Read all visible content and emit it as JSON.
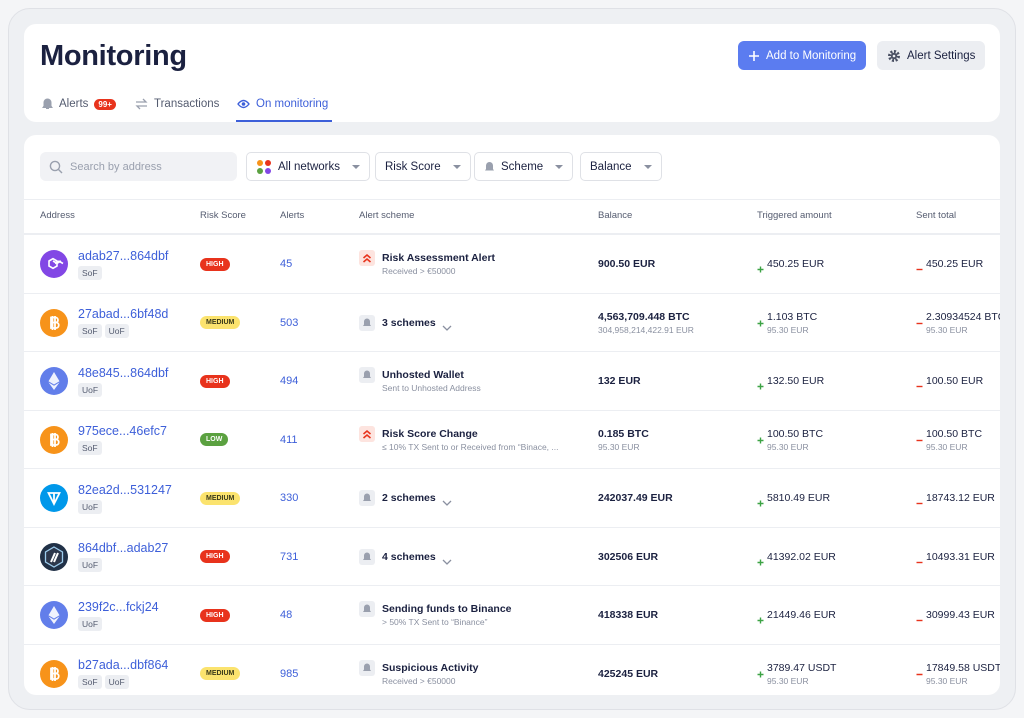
{
  "header": {
    "title": "Monitoring",
    "add_button": "Add to Monitoring",
    "settings_button": "Alert Settings"
  },
  "tabs": [
    {
      "label": "Alerts",
      "badge": "99+"
    },
    {
      "label": "Transactions"
    },
    {
      "label": "On monitoring",
      "active": true
    }
  ],
  "filters": {
    "search_placeholder": "Search by address",
    "networks": "All networks",
    "risk": "Risk Score",
    "scheme": "Scheme",
    "balance": "Balance"
  },
  "risk_styles": {
    "HIGH": {
      "bg": "#e8331c",
      "fg": "#ffffff"
    },
    "MEDIUM": {
      "bg": "#fbe36e",
      "fg": "#3a3a1a"
    },
    "LOW": {
      "bg": "#5ba140",
      "fg": "#ffffff"
    }
  },
  "table": {
    "columns": [
      "Address",
      "Risk Score",
      "Alerts",
      "Alert scheme",
      "Balance",
      "Triggered amount",
      "Sent total"
    ],
    "rows": [
      {
        "address": "adab27...864dbf",
        "tags": [
          "SoF"
        ],
        "risk": "HIGH",
        "alerts": "45",
        "scheme": "Risk Assessment Alert",
        "scheme_sub": "Received > €50000",
        "balance": "900.50 EUR",
        "triggered": "450.25 EUR",
        "sent": "450.25 EUR"
      },
      {
        "address": "27abad...6bf48d",
        "tags": [
          "SoF",
          "UoF"
        ],
        "risk": "MEDIUM",
        "alerts": "503",
        "scheme": "3 schemes",
        "balance": "4,563,709.448 BTC",
        "balance_sub": "304,958,214,422.91 EUR",
        "triggered": "1.103 BTC",
        "triggered_sub": "95.30 EUR",
        "sent": "2.30934524 BTC",
        "sent_sub": "95.30 EUR"
      },
      {
        "address": "48e845...864dbf",
        "tags": [
          "UoF"
        ],
        "risk": "HIGH",
        "alerts": "494",
        "scheme": "Unhosted Wallet",
        "scheme_sub": "Sent to Unhosted Address",
        "balance": "132 EUR",
        "triggered": "132.50 EUR",
        "sent": "100.50 EUR"
      },
      {
        "address": "975ece...46efc7",
        "tags": [
          "SoF"
        ],
        "risk": "LOW",
        "alerts": "411",
        "scheme": "Risk Score Change",
        "scheme_sub": "≤ 10% TX Sent to or Received from “Binace, ...",
        "balance": "0.185 BTC",
        "balance_sub": "95.30 EUR",
        "triggered": "100.50 BTC",
        "triggered_sub": "95.30 EUR",
        "sent": "100.50 BTC",
        "sent_sub": "95.30 EUR"
      },
      {
        "address": "82ea2d...531247",
        "tags": [
          "UoF"
        ],
        "risk": "MEDIUM",
        "alerts": "330",
        "scheme": "2 schemes",
        "balance": "242037.49 EUR",
        "triggered": "5810.49 EUR",
        "sent": "18743.12 EUR"
      },
      {
        "address": "864dbf...adab27",
        "tags": [
          "UoF"
        ],
        "risk": "HIGH",
        "alerts": "731",
        "scheme": "4 schemes",
        "balance": "302506 EUR",
        "triggered": "41392.02 EUR",
        "sent": "10493.31 EUR"
      },
      {
        "address": "239f2c...fckj24",
        "tags": [
          "UoF"
        ],
        "risk": "HIGH",
        "alerts": "48",
        "scheme": "Sending funds to Binance",
        "scheme_sub": "> 50% TX Sent to “Binance”",
        "balance": "418338 EUR",
        "triggered": "21449.46 EUR",
        "sent": "30999.43 EUR"
      },
      {
        "address": "b27ada...dbf864",
        "tags": [
          "SoF",
          "UoF"
        ],
        "risk": "MEDIUM",
        "alerts": "985",
        "scheme": "Suspicious Activity",
        "scheme_sub": "Received > €50000",
        "balance": "425245 EUR",
        "triggered": "3789.47 USDT",
        "triggered_sub": "95.30 EUR",
        "sent": "17849.58 USDT",
        "sent_sub": "95.30 EUR"
      }
    ]
  }
}
